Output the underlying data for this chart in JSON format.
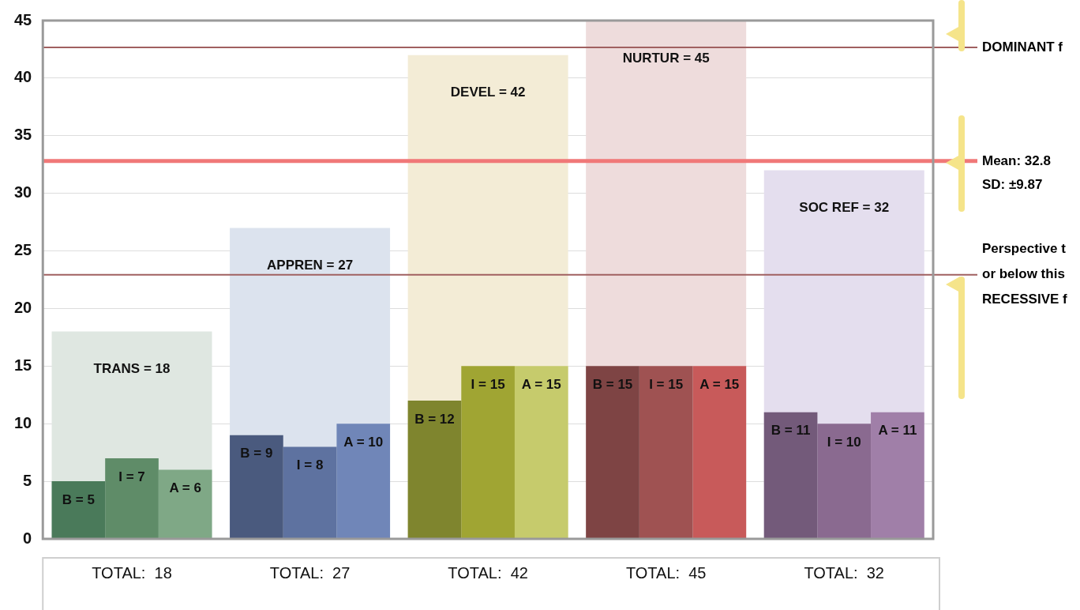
{
  "chart_data": {
    "type": "bar",
    "categories": [
      "TOTAL:  18",
      "TOTAL:  27",
      "TOTAL:  42",
      "TOTAL:  45",
      "TOTAL:  32"
    ],
    "series": [
      {
        "values": [
          18,
          27,
          42,
          45,
          32
        ],
        "colors": [
          "#dfe7e1",
          "#dce3ee",
          "#f3ecd6",
          "#eedcdc",
          "#e4deee"
        ],
        "value_labels": [
          "TRANS = 18",
          "APPREN = 27",
          "DEVEL = 42",
          "NURTUR = 45",
          "SOC REF = 32"
        ]
      },
      {
        "values": [
          5,
          9,
          12,
          15,
          11
        ],
        "colors": [
          "#4a7a5a",
          "#4a5a7e",
          "#7f852e",
          "#7e4444",
          "#735a7a"
        ],
        "value_labels": [
          "B = 5",
          "B = 9",
          "B = 12",
          "B = 15",
          "B = 11"
        ]
      },
      {
        "values": [
          7,
          8,
          15,
          15,
          10
        ],
        "colors": [
          "#5f8c68",
          "#5e72a0",
          "#a0a533",
          "#9f5252",
          "#8a6a90"
        ],
        "value_labels": [
          "I = 7",
          "I = 8",
          "I = 15",
          "I = 15",
          "I = 10"
        ]
      },
      {
        "values": [
          6,
          10,
          15,
          15,
          11
        ],
        "colors": [
          "#7fa886",
          "#7086b8",
          "#c6cb6c",
          "#c85a5a",
          "#a07fa8"
        ],
        "value_labels": [
          "A = 6",
          "A = 10",
          "A = 15",
          "A = 15",
          "A = 11"
        ]
      }
    ],
    "ylim": [
      0,
      45
    ],
    "yticks": [
      0,
      5,
      10,
      15,
      20,
      25,
      30,
      35,
      40,
      45
    ],
    "grid": "y",
    "legend": false,
    "ref_lines": [
      {
        "axis": "y",
        "value": 42.67,
        "label": "DOMINANT f",
        "color": "#a06060"
      },
      {
        "axis": "y",
        "value": 32.8,
        "label": "Mean: 32.8",
        "color": "#f07878"
      },
      {
        "axis": "y",
        "value": 22.93,
        "label": "Perspective t\nor below this\nRECESSIVE f",
        "color": "#a06060"
      }
    ],
    "annotations": [
      "SD: ±9.87"
    ]
  }
}
